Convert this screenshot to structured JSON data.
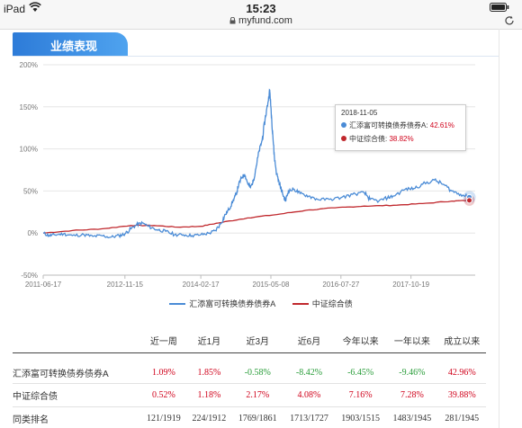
{
  "status": {
    "device": "iPad",
    "time": "15:23",
    "url": "myfund.com",
    "icons": [
      "wifi-icon",
      "battery-icon",
      "lock-icon",
      "reader-icon",
      "refresh-icon"
    ]
  },
  "section": {
    "title": "业绩表现"
  },
  "chart_data": {
    "type": "line",
    "title": "",
    "y_ticks": [
      "200%",
      "150%",
      "100%",
      "50%",
      "0%",
      "-50%"
    ],
    "ylim": [
      -50,
      200
    ],
    "x_ticks": [
      "2011-06-17",
      "2012-11-15",
      "2014-02-17",
      "2015-05-08",
      "2016-07-27",
      "2017-10-19"
    ],
    "x_tick_positions": [
      0,
      1.4,
      2.7,
      3.9,
      5.1,
      6.3
    ],
    "xlim": [
      0,
      7.4
    ],
    "grid": "horizontal",
    "legend_position": "bottom",
    "series": [
      {
        "name": "汇添富可转换债券债券A",
        "color": "#4a8bd6",
        "points": [
          [
            0,
            0
          ],
          [
            0.1,
            -3
          ],
          [
            0.2,
            -2
          ],
          [
            0.35,
            -1
          ],
          [
            0.5,
            -3
          ],
          [
            0.7,
            -2
          ],
          [
            0.85,
            -4
          ],
          [
            1.0,
            -3
          ],
          [
            1.15,
            -5
          ],
          [
            1.3,
            -3
          ],
          [
            1.4,
            -1
          ],
          [
            1.5,
            5
          ],
          [
            1.6,
            10
          ],
          [
            1.7,
            12
          ],
          [
            1.8,
            8
          ],
          [
            1.95,
            4
          ],
          [
            2.1,
            2
          ],
          [
            2.25,
            -2
          ],
          [
            2.4,
            -2
          ],
          [
            2.55,
            -3
          ],
          [
            2.7,
            -2
          ],
          [
            2.85,
            0
          ],
          [
            2.95,
            3
          ],
          [
            3.05,
            12
          ],
          [
            3.12,
            22
          ],
          [
            3.18,
            28
          ],
          [
            3.25,
            38
          ],
          [
            3.3,
            45
          ],
          [
            3.35,
            58
          ],
          [
            3.4,
            66
          ],
          [
            3.45,
            70
          ],
          [
            3.5,
            60
          ],
          [
            3.55,
            54
          ],
          [
            3.6,
            62
          ],
          [
            3.65,
            80
          ],
          [
            3.7,
            98
          ],
          [
            3.75,
            110
          ],
          [
            3.8,
            135
          ],
          [
            3.85,
            155
          ],
          [
            3.88,
            170
          ],
          [
            3.9,
            150
          ],
          [
            3.93,
            120
          ],
          [
            3.96,
            90
          ],
          [
            4.0,
            70
          ],
          [
            4.05,
            58
          ],
          [
            4.1,
            47
          ],
          [
            4.15,
            38
          ],
          [
            4.2,
            50
          ],
          [
            4.3,
            52
          ],
          [
            4.4,
            47
          ],
          [
            4.55,
            44
          ],
          [
            4.7,
            40
          ],
          [
            4.9,
            40
          ],
          [
            5.1,
            42
          ],
          [
            5.3,
            46
          ],
          [
            5.5,
            48
          ],
          [
            5.6,
            40
          ],
          [
            5.75,
            38
          ],
          [
            5.9,
            42
          ],
          [
            6.0,
            44
          ],
          [
            6.2,
            52
          ],
          [
            6.35,
            53
          ],
          [
            6.5,
            58
          ],
          [
            6.7,
            63
          ],
          [
            6.85,
            58
          ],
          [
            7.0,
            50
          ],
          [
            7.15,
            46
          ],
          [
            7.3,
            42.61
          ]
        ]
      },
      {
        "name": "中证综合债",
        "color": "#c0282d",
        "points": [
          [
            0,
            0
          ],
          [
            0.5,
            3
          ],
          [
            1.0,
            5
          ],
          [
            1.5,
            9
          ],
          [
            1.9,
            9
          ],
          [
            2.3,
            7
          ],
          [
            2.7,
            8
          ],
          [
            3.0,
            12
          ],
          [
            3.5,
            18
          ],
          [
            4.0,
            22
          ],
          [
            4.5,
            27
          ],
          [
            5.0,
            30
          ],
          [
            5.5,
            32
          ],
          [
            6.0,
            33
          ],
          [
            6.5,
            35
          ],
          [
            7.0,
            38
          ],
          [
            7.3,
            38.82
          ]
        ]
      }
    ],
    "tooltip": {
      "date": "2018-11-05",
      "rows": [
        {
          "label": "汇添富可转换债券债券A: ",
          "value": "42.61%",
          "color": "#4a8bd6"
        },
        {
          "label": "中证综合债: ",
          "value": "38.82%",
          "color": "#c0282d"
        }
      ]
    }
  },
  "table": {
    "headers": [
      "",
      "近一周",
      "近1月",
      "近3月",
      "近6月",
      "今年以来",
      "一年以来",
      "成立以来"
    ],
    "rows": [
      {
        "name": "汇添富可转换债券债券A",
        "values": [
          "1.09%",
          "1.85%",
          "-0.58%",
          "-8.42%",
          "-6.45%",
          "-9.46%",
          "42.96%"
        ]
      },
      {
        "name": "中证综合债",
        "values": [
          "0.52%",
          "1.18%",
          "2.17%",
          "4.08%",
          "7.16%",
          "7.28%",
          "39.88%"
        ]
      },
      {
        "name": "同类排名",
        "values": [
          "121/1919",
          "224/1912",
          "1769/1861",
          "1713/1727",
          "1903/1515",
          "1483/1945",
          "281/1945"
        ]
      }
    ]
  }
}
